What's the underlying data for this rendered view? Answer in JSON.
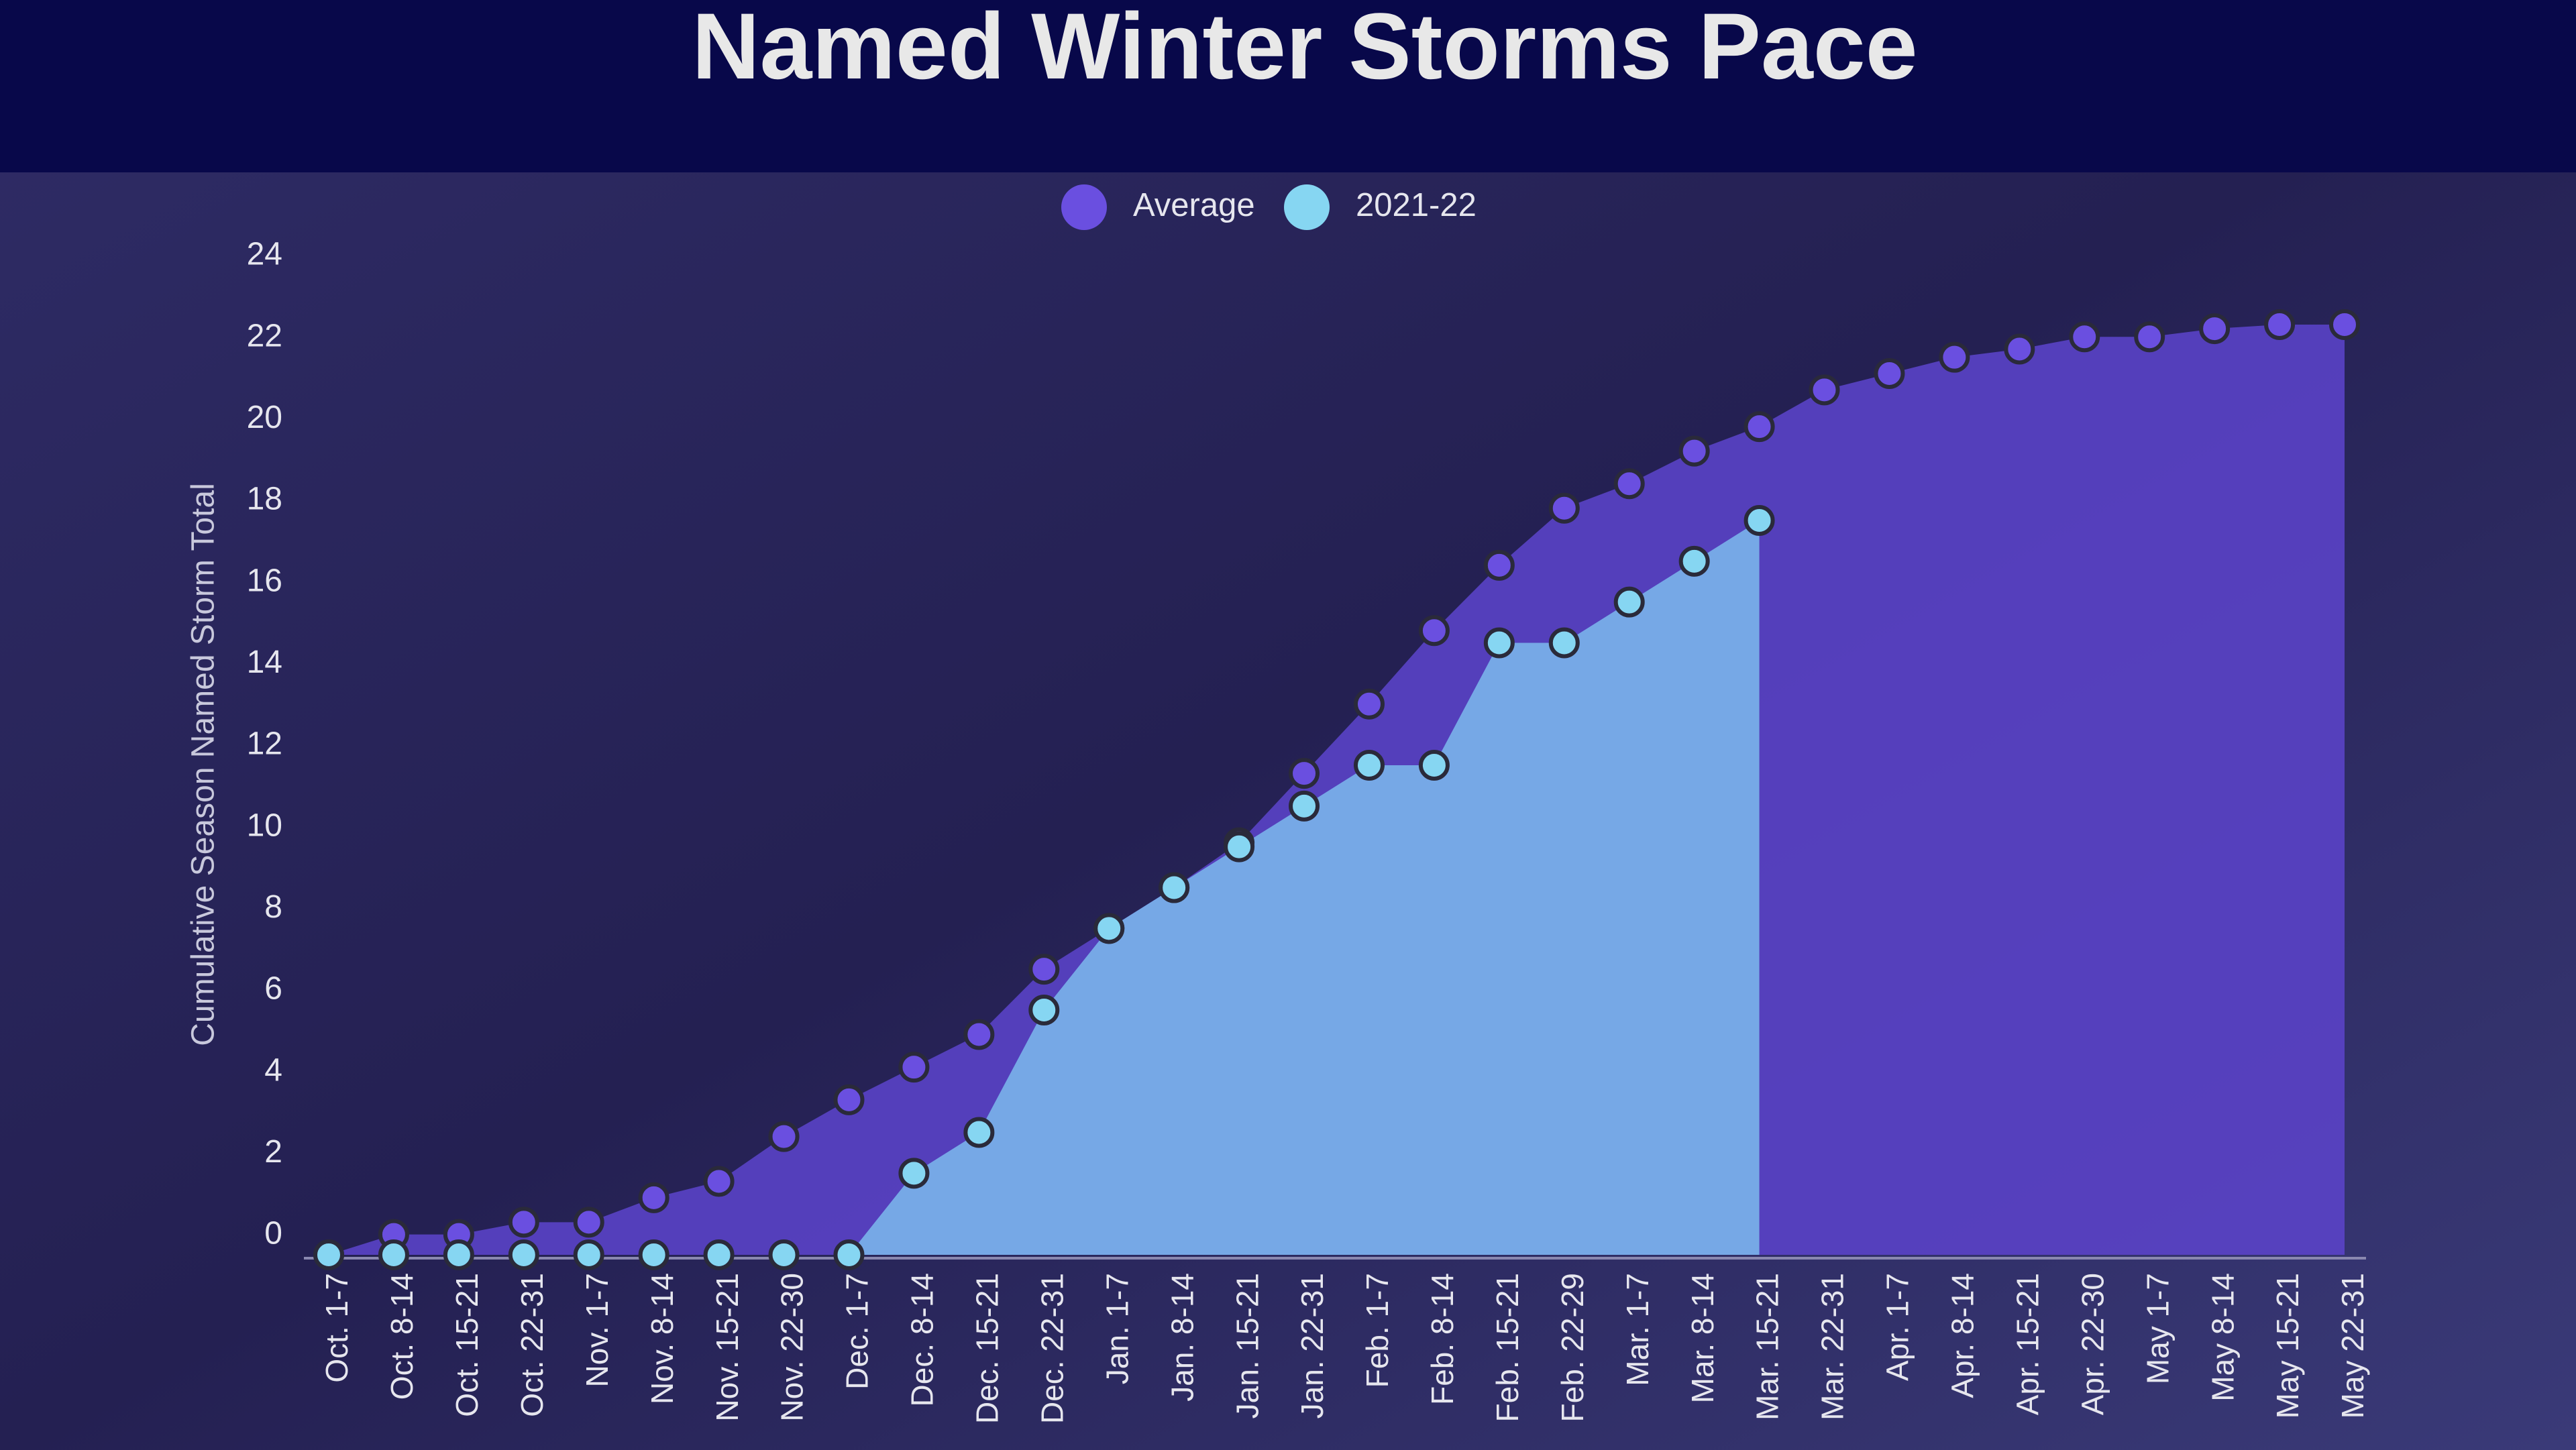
{
  "chart_data": {
    "type": "area",
    "title": "Named Winter Storms Pace",
    "y_label": "Cumulative Season Named Storm Total",
    "categories": [
      "Oct. 1-7",
      "Oct. 8-14",
      "Oct. 15-21",
      "Oct. 22-31",
      "Nov. 1-7",
      "Nov. 8-14",
      "Nov. 15-21",
      "Nov. 22-30",
      "Dec. 1-7",
      "Dec. 8-14",
      "Dec. 15-21",
      "Dec. 22-31",
      "Jan. 1-7",
      "Jan. 8-14",
      "Jan. 15-21",
      "Jan. 22-31",
      "Feb. 1-7",
      "Feb. 8-14",
      "Feb. 15-21",
      "Feb. 22-29",
      "Mar. 1-7",
      "Mar. 8-14",
      "Mar. 15-21",
      "Mar. 22-31",
      "Apr. 1-7",
      "Apr. 8-14",
      "Apr. 15-21",
      "Apr. 22-30",
      "May 1-7",
      "May 8-14",
      "May 15-21",
      "May 22-31"
    ],
    "series": [
      {
        "name": "Average",
        "color": "#6a4fe0",
        "fill": "#5a43c6",
        "values": [
          0,
          0.5,
          0.5,
          0.8,
          0.8,
          1.4,
          1.8,
          2.9,
          3.8,
          4.6,
          5.4,
          7.0,
          8.0,
          9.0,
          10.1,
          11.8,
          13.5,
          15.3,
          16.9,
          18.3,
          18.9,
          19.7,
          20.3,
          21.2,
          21.6,
          22.0,
          22.2,
          22.5,
          22.5,
          22.7,
          22.8,
          22.8
        ]
      },
      {
        "name": "2021-22",
        "color": "#86d6f2",
        "fill": "#76a8e6",
        "values": [
          0,
          0,
          0,
          0,
          0,
          0,
          0,
          0,
          0,
          2,
          3,
          6,
          8,
          9,
          10,
          11,
          12,
          12,
          15,
          15,
          16,
          17,
          18,
          null,
          null,
          null,
          null,
          null,
          null,
          null,
          null,
          null
        ]
      }
    ],
    "ylim": [
      0,
      24
    ],
    "yticks": [
      0,
      2,
      4,
      6,
      8,
      10,
      12,
      14,
      16,
      18,
      20,
      22,
      24
    ],
    "legend": "top"
  }
}
